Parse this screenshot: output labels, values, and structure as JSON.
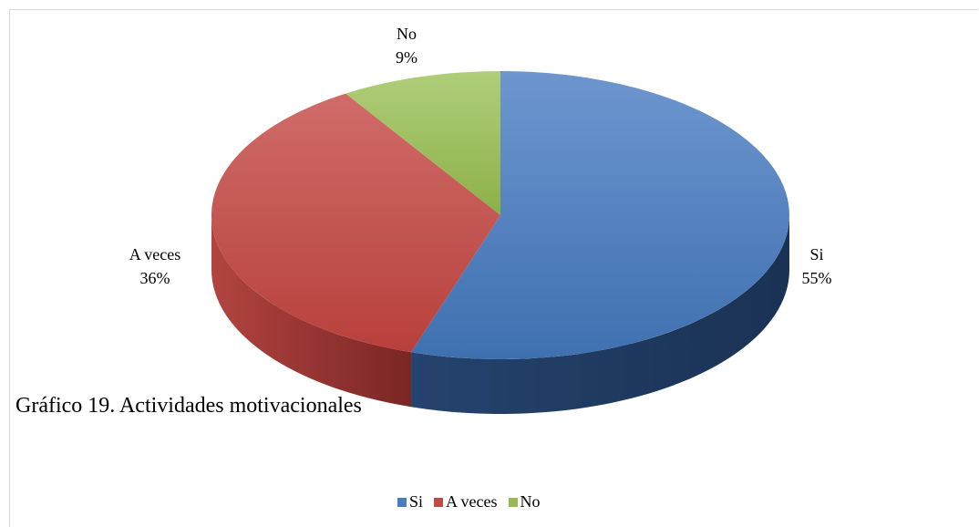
{
  "caption": "Gráfico 19. Actividades motivacionales",
  "chart_data": {
    "type": "pie",
    "style": "3d",
    "categories": [
      "Si",
      "A veces",
      "No"
    ],
    "values": [
      55,
      36,
      9
    ],
    "value_labels": [
      "55%",
      "36%",
      "9%"
    ],
    "colors": [
      "#4a7ebb",
      "#be4b48",
      "#98b954"
    ],
    "legend": [
      "Si",
      "A veces",
      "No"
    ],
    "legend_position": "bottom"
  }
}
